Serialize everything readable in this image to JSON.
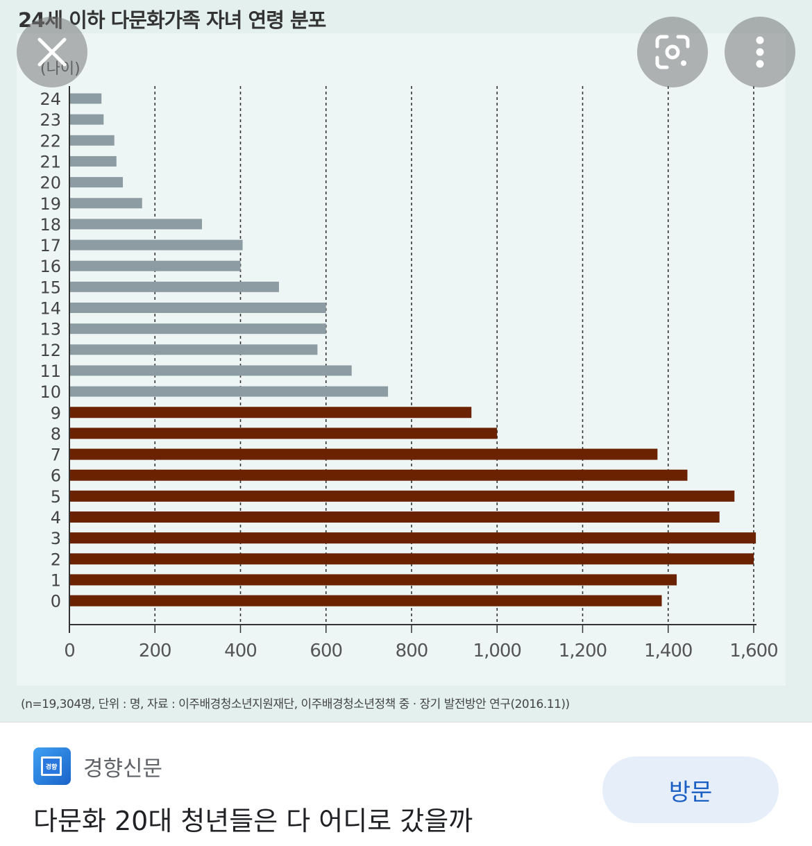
{
  "viewer": {
    "close_icon": "close-icon",
    "lens_icon": "lens-icon",
    "more_icon": "more-vert-icon"
  },
  "chart_data": {
    "type": "bar",
    "orientation": "horizontal",
    "title": "24세 이하 다문화가족 자녀 연령 분포",
    "ylabel": "(나이)",
    "xlabel": "",
    "categories": [
      "0",
      "1",
      "2",
      "3",
      "4",
      "5",
      "6",
      "7",
      "8",
      "9",
      "10",
      "11",
      "12",
      "13",
      "14",
      "15",
      "16",
      "17",
      "18",
      "19",
      "20",
      "21",
      "22",
      "23",
      "24"
    ],
    "values": [
      1385,
      1420,
      1600,
      1605,
      1520,
      1555,
      1445,
      1375,
      1000,
      940,
      745,
      660,
      580,
      600,
      600,
      490,
      400,
      405,
      310,
      170,
      125,
      110,
      105,
      80,
      75
    ],
    "series_colors": {
      "age_0_9": "#6b2200",
      "age_10_24": "#8d9ca3"
    },
    "xlim": [
      0,
      1600
    ],
    "x_ticks": [
      "0",
      "200",
      "400",
      "600",
      "800",
      "1,000",
      "1,200",
      "1,400",
      "1,600"
    ],
    "grid": "vertical dashed",
    "footnote": "(n=19,304명, 단위 : 명, 자료 : 이주배경청소년지원재단, 이주배경청소년정책 중 · 장기 발전방안 연구(2016.11))"
  },
  "result": {
    "source_name": "경향신문",
    "source_icon_text": "경향",
    "visit_label": "방문",
    "heading": "다문화 20대 청년들은 다 어디로 갔을까"
  }
}
